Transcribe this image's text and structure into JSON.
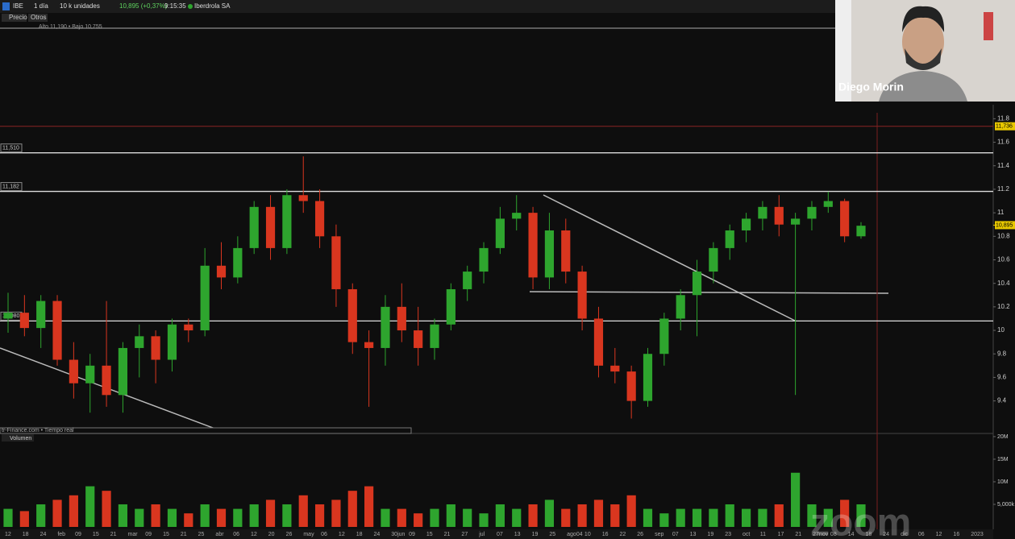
{
  "toolbar": {
    "symbol": "IBE",
    "period": "1 día",
    "units": "10 k unidades",
    "quote": "10,895 (+0,37%)",
    "time": "9:15:35",
    "name": "Iberdrola SA",
    "tabs": [
      "Precio",
      "Otros"
    ],
    "info": "Alto 11,190 • Bajo 10,755"
  },
  "source": "tr-Finance.com • Tiempo real",
  "webcam": {
    "name": "Diego Morin"
  },
  "watermark": "zoom",
  "x_labels": [
    "12",
    "18",
    "24",
    "feb",
    "09",
    "15",
    "21",
    "mar",
    "09",
    "15",
    "21",
    "25",
    "abr",
    "06",
    "12",
    "20",
    "26",
    "may",
    "06",
    "12",
    "18",
    "24",
    "30jun",
    "09",
    "15",
    "21",
    "27",
    "jul",
    "07",
    "13",
    "19",
    "25",
    "ago04",
    "10",
    "16",
    "22",
    "26",
    "sep",
    "07",
    "13",
    "19",
    "23",
    "oct",
    "11",
    "17",
    "21",
    "27nov",
    "08",
    "14",
    "18",
    "24",
    "dic",
    "06",
    "12",
    "16",
    "2023"
  ],
  "chart_data": [
    {
      "type": "candlestick",
      "up_color": "#2ea52e",
      "down_color": "#d9361f",
      "ylim": [
        9.13,
        12.81
      ],
      "yticks": [
        11.8,
        11.6,
        11.4,
        11.2,
        11,
        10.8,
        10.6,
        10.4,
        10.2,
        10,
        9.8,
        9.6,
        9.4
      ],
      "levels": [
        {
          "value": 11.51,
          "label": "11,510"
        },
        {
          "value": 11.182,
          "label": "11,182"
        },
        {
          "value": 10.08,
          "label": "10,080"
        }
      ],
      "marker": {
        "value": 11.736,
        "label": "11,736"
      },
      "last": {
        "value": 10.895,
        "label": "10,895"
      },
      "open": [
        10.1,
        10.15,
        10.02,
        10.25,
        9.75,
        9.55,
        9.7,
        9.45,
        9.85,
        9.95,
        9.75,
        10.05,
        10.0,
        10.55,
        10.45,
        10.7,
        11.05,
        10.7,
        11.15,
        11.1,
        10.8,
        10.35,
        9.9,
        9.85,
        10.2,
        10.0,
        9.85,
        10.05,
        10.35,
        10.5,
        10.7,
        10.95,
        11.0,
        10.45,
        10.85,
        10.5,
        10.1,
        9.7,
        9.65,
        9.4,
        9.8,
        10.1,
        10.3,
        10.5,
        10.7,
        10.85,
        10.95,
        11.05,
        10.9,
        10.95,
        11.05,
        11.1,
        10.8
      ],
      "high": [
        10.32,
        10.3,
        10.3,
        10.3,
        9.9,
        9.8,
        10.25,
        9.9,
        10.05,
        10.0,
        10.1,
        10.1,
        10.7,
        10.75,
        10.8,
        11.1,
        11.15,
        11.2,
        11.48,
        11.2,
        10.9,
        10.4,
        10.0,
        10.3,
        10.4,
        10.2,
        10.1,
        10.4,
        10.55,
        10.75,
        11.05,
        11.15,
        11.05,
        11.0,
        10.95,
        10.55,
        10.2,
        9.85,
        9.7,
        9.85,
        10.15,
        10.35,
        10.6,
        10.75,
        10.9,
        11.0,
        11.1,
        11.15,
        11.0,
        11.1,
        11.18,
        11.12,
        10.92
      ],
      "low": [
        9.98,
        9.95,
        9.85,
        9.7,
        9.42,
        9.3,
        9.35,
        9.3,
        9.6,
        9.55,
        9.65,
        9.9,
        9.95,
        10.35,
        10.4,
        10.65,
        10.6,
        10.65,
        11.0,
        10.7,
        10.2,
        9.8,
        9.35,
        9.7,
        9.9,
        9.7,
        9.75,
        10.0,
        10.25,
        10.4,
        10.65,
        10.85,
        10.35,
        10.35,
        10.4,
        10.0,
        9.6,
        9.55,
        9.25,
        9.35,
        9.7,
        10.0,
        9.95,
        10.4,
        10.6,
        10.75,
        10.85,
        10.8,
        9.45,
        10.85,
        11.0,
        10.75,
        10.78
      ],
      "close": [
        10.15,
        10.02,
        10.25,
        9.75,
        9.55,
        9.7,
        9.45,
        9.85,
        9.95,
        9.75,
        10.05,
        10.0,
        10.55,
        10.45,
        10.7,
        11.05,
        10.7,
        11.15,
        11.1,
        10.8,
        10.35,
        9.9,
        9.85,
        10.2,
        10.0,
        9.85,
        10.05,
        10.35,
        10.5,
        10.7,
        10.95,
        11.0,
        10.45,
        10.85,
        10.5,
        10.1,
        9.7,
        9.65,
        9.4,
        9.8,
        10.1,
        10.3,
        10.5,
        10.7,
        10.85,
        10.95,
        11.05,
        10.9,
        10.95,
        11.05,
        11.1,
        10.8,
        10.89
      ]
    },
    {
      "type": "volume",
      "title": "Volumen",
      "up_color": "#2ea52e",
      "down_color": "#d9361f",
      "ylim": [
        0,
        20.7
      ],
      "yticks": [
        {
          "value": 20,
          "label": "20M"
        },
        {
          "value": 15,
          "label": "15M"
        },
        {
          "value": 10,
          "label": "10M"
        },
        {
          "value": 5,
          "label": "5,000k"
        }
      ],
      "values": [
        4,
        3.5,
        5,
        6,
        7,
        9,
        8,
        5,
        4,
        5,
        4,
        3,
        5,
        4,
        4,
        5,
        6,
        5,
        7,
        5,
        6,
        8,
        9,
        4,
        4,
        3,
        4,
        5,
        4,
        3,
        5,
        4,
        5,
        6,
        4,
        5,
        6,
        5,
        7,
        4,
        3,
        4,
        4,
        4,
        5,
        4,
        4,
        5,
        12,
        5,
        4,
        6,
        5
      ]
    }
  ]
}
